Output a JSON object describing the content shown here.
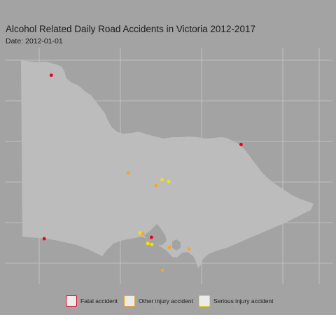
{
  "title": "Alcohol Related Daily Road Accidents in Victoria 2012-2017",
  "subtitle": "Date: 2012-01-01",
  "colors": {
    "panel_background": "#a3a3a3",
    "land": "#bcbcbc",
    "grid": "#c8c8c8",
    "fatal": "#e8001c",
    "other_injury": "#f5a623",
    "serious_injury": "#f5e400"
  },
  "legend": [
    {
      "label": "Fatal accident",
      "category": "fatal"
    },
    {
      "label": "Other injury accident",
      "category": "other_injury"
    },
    {
      "label": "Serious injury accident",
      "category": "serious_injury"
    }
  ],
  "chart_data": {
    "type": "scatter",
    "grid": true,
    "axis_labels_visible": false,
    "xlim": [
      140.8,
      150.1
    ],
    "ylim": [
      -39.25,
      -33.95
    ],
    "points": [
      {
        "lon": 142.1,
        "lat": -34.57,
        "category": "fatal"
      },
      {
        "lon": 147.5,
        "lat": -36.12,
        "category": "fatal"
      },
      {
        "lon": 141.9,
        "lat": -38.23,
        "category": "fatal"
      },
      {
        "lon": 144.95,
        "lat": -38.2,
        "category": "fatal"
      },
      {
        "lon": 144.29,
        "lat": -36.76,
        "category": "other_injury"
      },
      {
        "lon": 145.08,
        "lat": -37.04,
        "category": "other_injury"
      },
      {
        "lon": 145.46,
        "lat": -38.43,
        "category": "other_injury"
      },
      {
        "lon": 146.02,
        "lat": -38.46,
        "category": "other_injury"
      },
      {
        "lon": 145.26,
        "lat": -38.94,
        "category": "other_injury"
      },
      {
        "lon": 144.71,
        "lat": -38.12,
        "category": "other_injury"
      },
      {
        "lon": 144.82,
        "lat": -38.31,
        "category": "other_injury"
      },
      {
        "lon": 145.25,
        "lat": -36.91,
        "category": "serious_injury"
      },
      {
        "lon": 145.44,
        "lat": -36.95,
        "category": "serious_injury"
      },
      {
        "lon": 144.62,
        "lat": -38.1,
        "category": "serious_injury"
      },
      {
        "lon": 144.85,
        "lat": -38.34,
        "category": "serious_injury"
      },
      {
        "lon": 144.96,
        "lat": -38.36,
        "category": "serious_injury"
      }
    ]
  }
}
